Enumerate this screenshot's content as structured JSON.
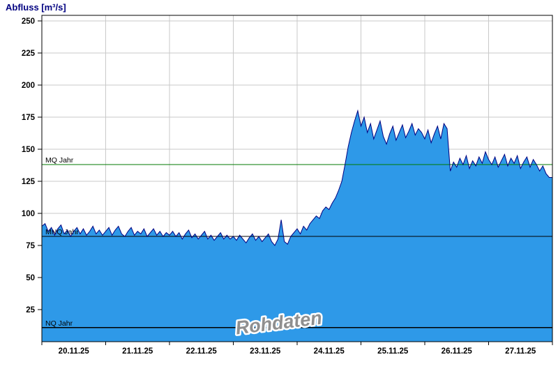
{
  "title": "Abfluss [m³/s]",
  "watermark": "Rohdaten",
  "chart_data": {
    "type": "area",
    "title": "Abfluss [m³/s]",
    "ylabel": "Abfluss [m³/s]",
    "ylim": [
      0,
      250
    ],
    "y_tick_step": 25,
    "y_ticks": [
      25,
      50,
      75,
      100,
      125,
      150,
      175,
      200,
      225,
      250
    ],
    "x_tick_labels": [
      "20.11.25",
      "21.11.25",
      "22.11.25",
      "23.11.25",
      "24.11.25",
      "25.11.25",
      "26.11.25",
      "27.11.25"
    ],
    "x_span_days": 8,
    "sample_step_days": 0.05,
    "grid": true,
    "series_name": "Abfluss Rohdaten",
    "values": [
      90,
      92,
      86,
      89,
      83,
      88,
      91,
      84,
      87,
      82,
      86,
      89,
      84,
      88,
      83,
      86,
      90,
      84,
      87,
      83,
      86,
      89,
      83,
      87,
      90,
      84,
      82,
      86,
      89,
      83,
      86,
      84,
      88,
      82,
      85,
      88,
      83,
      86,
      82,
      85,
      83,
      86,
      82,
      85,
      80,
      84,
      87,
      81,
      84,
      80,
      83,
      86,
      80,
      83,
      79,
      82,
      85,
      80,
      83,
      80,
      82,
      79,
      83,
      80,
      77,
      81,
      84,
      79,
      82,
      78,
      81,
      84,
      78,
      75,
      80,
      95,
      78,
      76,
      82,
      85,
      88,
      84,
      90,
      87,
      92,
      95,
      98,
      96,
      102,
      105,
      103,
      108,
      112,
      118,
      125,
      138,
      152,
      163,
      172,
      180,
      168,
      175,
      163,
      170,
      158,
      165,
      172,
      160,
      154,
      162,
      168,
      157,
      163,
      169,
      159,
      164,
      170,
      161,
      166,
      163,
      158,
      165,
      155,
      162,
      168,
      158,
      170,
      166,
      133,
      140,
      136,
      143,
      138,
      145,
      135,
      141,
      137,
      144,
      139,
      148,
      142,
      138,
      144,
      136,
      141,
      146,
      137,
      143,
      139,
      145,
      135,
      140,
      144,
      136,
      142,
      138,
      133,
      137,
      131,
      128,
      128
    ],
    "reference_lines": [
      {
        "label": "MQ Jahr",
        "value": 138,
        "color": "#007a00"
      },
      {
        "label": "MNQ Jahr",
        "value": 82,
        "color": "#000000"
      },
      {
        "label": "NQ Jahr",
        "value": 11,
        "color": "#000000"
      }
    ],
    "colors": {
      "area": "#2E99E8",
      "line": "#000080",
      "grid": "#c9c9c9",
      "frame": "#000000",
      "tick_text": "#000000",
      "title": "#000080"
    },
    "legend": "none"
  }
}
